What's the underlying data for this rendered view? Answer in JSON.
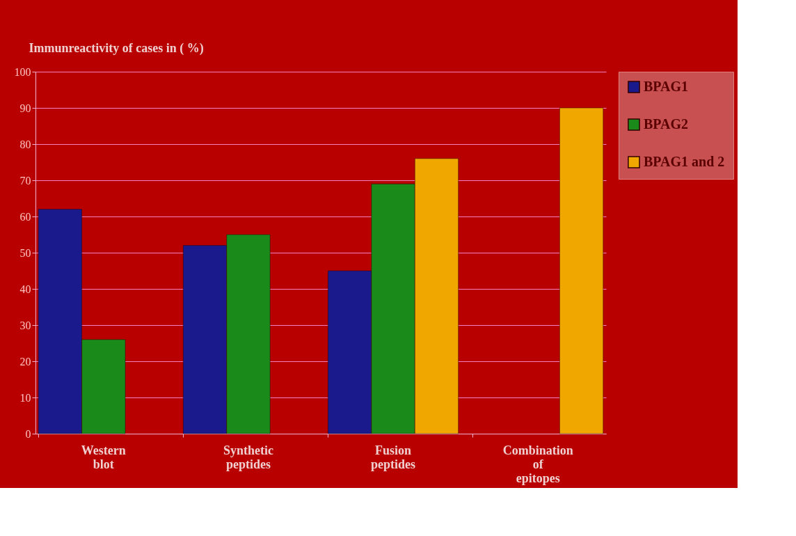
{
  "chart_data": {
    "type": "bar",
    "ylabel": "Immunreactivity of cases in ( %)",
    "categories": [
      "Western blot",
      "Synthetic peptides",
      "Fusion  peptides",
      "Combination of epitopes"
    ],
    "series": [
      {
        "name": "BPAG1",
        "color": "#1a1a8c",
        "values": [
          62,
          52,
          45,
          null
        ]
      },
      {
        "name": "BPAG2",
        "color": "#1a8a1a",
        "values": [
          26,
          55,
          69,
          null
        ]
      },
      {
        "name": "BPAG1 and 2",
        "color": "#f0a800",
        "values": [
          null,
          null,
          76,
          90
        ]
      }
    ],
    "ylim": [
      0,
      100
    ],
    "yticks": [
      0,
      10,
      20,
      30,
      40,
      50,
      60,
      70,
      80,
      90,
      100
    ],
    "grid": "y",
    "legend": "right"
  }
}
